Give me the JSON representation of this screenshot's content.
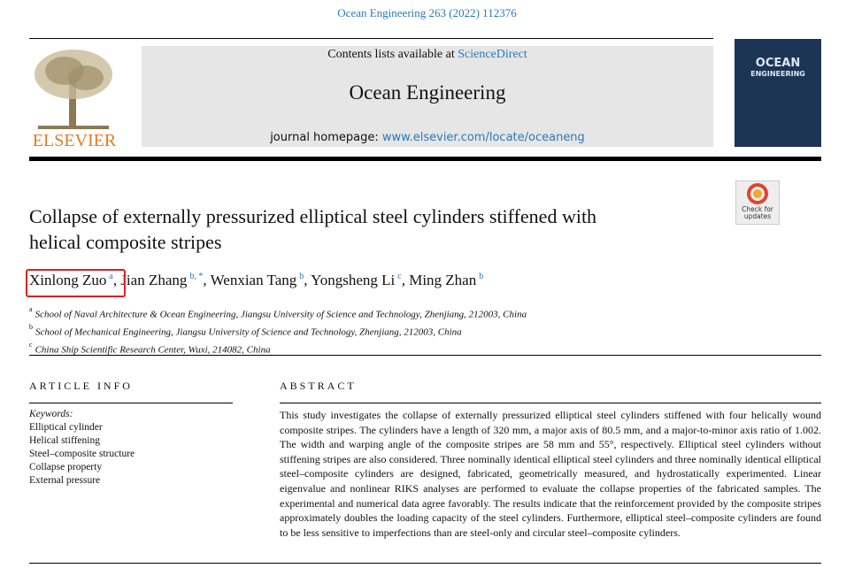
{
  "header": {
    "citation": "Ocean Engineering 263 (2022) 112376",
    "contents_prefix": "Contents lists available at",
    "contents_link": "ScienceDirect",
    "journal": "Ocean Engineering",
    "homepage_prefix": "journal homepage:",
    "homepage_link": "www.elsevier.com/locate/oceaneng",
    "publisher": "ELSEVIER",
    "cover_title": [
      "OCEAN",
      "ENGINEERING"
    ],
    "badge": [
      "Check for",
      "updates"
    ]
  },
  "article": {
    "title": [
      "Collapse of externally pressurized elliptical steel cylinders stiffened with",
      "helical composite stripes"
    ],
    "authors": [
      {
        "name": "Xinlong Zuo",
        "sup": "a"
      },
      {
        "name": "Jian Zhang",
        "sup": "b, *"
      },
      {
        "name": "Wenxian Tang",
        "sup": "b"
      },
      {
        "name": "Yongsheng Li",
        "sup": "c"
      },
      {
        "name": "Ming Zhan",
        "sup": "b"
      }
    ],
    "affiliations": [
      {
        "label": "a",
        "text": "School of Naval Architecture & Ocean Engineering, Jiangsu University of Science and Technology, Zhenjiang, 212003, China"
      },
      {
        "label": "b",
        "text": "School of Mechanical Engineering, Jiangsu University of Science and Technology, Zhenjiang, 212003, China"
      },
      {
        "label": "c",
        "text": "China Ship Scientific Research Center, Wuxi, 214082, China"
      }
    ],
    "info_heading": "ARTICLE INFO",
    "keywords_label": "Keywords:",
    "keywords": [
      "Elliptical cylinder",
      "Helical stiffening",
      "Steel–composite structure",
      "Collapse property",
      "External pressure"
    ],
    "abstract_heading": "ABSTRACT",
    "abstract": "This study investigates the collapse of externally pressurized elliptical steel cylinders stiffened with four helically wound composite stripes. The cylinders have a length of 320 mm, a major axis of 80.5 mm, and a major-to-minor axis ratio of 1.002. The width and warping angle of the composite stripes are 58 mm and 55°, respectively. Elliptical steel cylinders without stiffening stripes are also considered. Three nominally identical elliptical steel cylinders and three nominally identical elliptical steel–composite cylinders are designed, fabricated, geometrically measured, and hydrostatically experimented. Linear eigenvalue and nonlinear RIKS analyses are performed to evaluate the collapse properties of the fabricated samples. The experimental and numerical data agree favorably. The results indicate that the reinforcement provided by the composite stripes approximately doubles the loading capacity of the steel cylinders. Furthermore, elliptical steel–composite cylinders are found to be less sensitive to imperfections than are steel-only and circular steel–composite cylinders."
  }
}
